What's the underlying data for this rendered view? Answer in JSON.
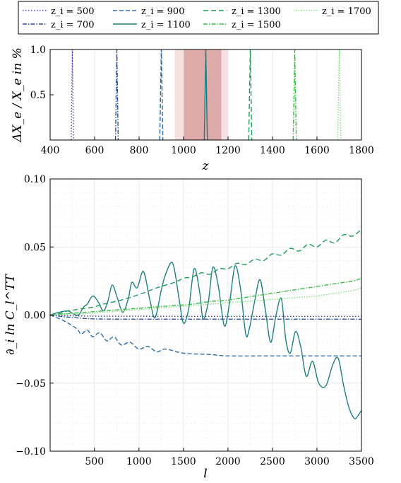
{
  "chart_data": [
    {
      "type": "line",
      "panel": "top",
      "xlabel": "z",
      "ylabel": "ΔX_e / X_e in %",
      "xlim": [
        400,
        1800
      ],
      "ylim": [
        0,
        1.0
      ],
      "xticks": [
        "400",
        "600",
        "800",
        "1000",
        "1200",
        "1400",
        "1600",
        "1800"
      ],
      "yticks": [
        "0.5",
        "1.0"
      ],
      "shaded_bands": [
        {
          "from": 960,
          "to": 1200,
          "color": "#f2dada",
          "opacity": 0.8
        },
        {
          "from": 1000,
          "to": 1170,
          "color": "#d9a0a0",
          "opacity": 0.85
        }
      ],
      "series": [
        {
          "name": "z_i = 500",
          "center": 500,
          "width": 10,
          "color": "#3b3bb0",
          "dash": "1.5,2.5"
        },
        {
          "name": "z_i = 700",
          "center": 700,
          "width": 12,
          "color": "#2f4fa0",
          "dash": "6,2,1.5,2"
        },
        {
          "name": "z_i = 900",
          "center": 900,
          "width": 14,
          "color": "#2f6aa8",
          "dash": "6,3"
        },
        {
          "name": "z_i = 1100",
          "center": 1100,
          "width": 14,
          "color": "#1f7f7f",
          "dash": ""
        },
        {
          "name": "z_i = 1300",
          "center": 1300,
          "width": 14,
          "color": "#1f9a5a",
          "dash": "7,4"
        },
        {
          "name": "z_i = 1500",
          "center": 1500,
          "width": 14,
          "color": "#3fba45",
          "dash": "6,2,1.5,2"
        },
        {
          "name": "z_i = 1700",
          "center": 1700,
          "width": 14,
          "color": "#7ee07a",
          "dash": "1.5,2"
        }
      ]
    },
    {
      "type": "line",
      "panel": "bottom",
      "xlabel": "l",
      "ylabel": "∂_i ln C_l^TT",
      "xlim": [
        2,
        3500
      ],
      "ylim": [
        -0.1,
        0.1
      ],
      "xticks": [
        "500",
        "1000",
        "1500",
        "2000",
        "2500",
        "3000",
        "3500"
      ],
      "yticks": [
        "−0.10",
        "−0.05",
        "0.00",
        "0.05",
        "0.10"
      ],
      "series": [
        {
          "name": "z_i = 500",
          "color": "#3b3bb0",
          "dash": "1.5,2.5",
          "x": [
            2,
            200,
            500,
            1000,
            1500,
            2000,
            2500,
            3000,
            3500
          ],
          "y": [
            0.0,
            -0.0005,
            -0.0008,
            -0.0009,
            -0.001,
            -0.001,
            -0.001,
            -0.001,
            -0.001
          ]
        },
        {
          "name": "z_i = 700",
          "color": "#2f4fa0",
          "dash": "6,2,1.5,2",
          "x": [
            2,
            200,
            500,
            1000,
            1500,
            2000,
            2500,
            3000,
            3500
          ],
          "y": [
            0.0,
            -0.0015,
            -0.0028,
            -0.003,
            -0.003,
            -0.003,
            -0.003,
            -0.003,
            -0.003
          ]
        },
        {
          "name": "z_i = 900",
          "color": "#2f6aa8",
          "dash": "6,3",
          "x": [
            2,
            150,
            300,
            350,
            420,
            480,
            560,
            640,
            720,
            800,
            900,
            1000,
            1100,
            1200,
            1300,
            1500,
            1800,
            2000,
            2500,
            3000,
            3500
          ],
          "y": [
            0.0,
            -0.004,
            -0.01,
            -0.014,
            -0.011,
            -0.016,
            -0.013,
            -0.019,
            -0.016,
            -0.022,
            -0.02,
            -0.025,
            -0.023,
            -0.027,
            -0.025,
            -0.028,
            -0.029,
            -0.03,
            -0.03,
            -0.03,
            -0.03
          ]
        },
        {
          "name": "z_i = 1100",
          "color": "#1f7f7f",
          "dash": "",
          "x": [
            2,
            100,
            200,
            260,
            320,
            380,
            420,
            480,
            540,
            600,
            650,
            700,
            760,
            820,
            880,
            920,
            980,
            1050,
            1120,
            1180,
            1250,
            1300,
            1380,
            1450,
            1500,
            1560,
            1620,
            1680,
            1720,
            1780,
            1830,
            1890,
            1960,
            2020,
            2080,
            2140,
            2200,
            2240,
            2300,
            2360,
            2420,
            2480,
            2540,
            2600,
            2650,
            2700,
            2760,
            2820,
            2880,
            2950,
            3020,
            3100,
            3180,
            3240,
            3300,
            3360,
            3420,
            3460,
            3500
          ],
          "y": [
            0.0,
            0.002,
            0.003,
            0.001,
            0.0,
            0.006,
            0.008,
            0.014,
            0.01,
            0.003,
            0.01,
            0.022,
            0.012,
            0.002,
            0.012,
            0.024,
            0.02,
            0.032,
            0.012,
            -0.002,
            0.018,
            0.03,
            0.038,
            0.012,
            -0.006,
            0.005,
            0.034,
            0.018,
            -0.003,
            0.01,
            0.035,
            0.022,
            -0.008,
            0.01,
            0.036,
            0.02,
            -0.014,
            -0.01,
            0.01,
            0.026,
            0.004,
            -0.02,
            0.0,
            0.012,
            -0.018,
            -0.028,
            -0.012,
            -0.024,
            -0.045,
            -0.034,
            -0.05,
            -0.052,
            -0.036,
            -0.032,
            -0.052,
            -0.068,
            -0.076,
            -0.074,
            -0.07
          ]
        },
        {
          "name": "z_i = 1300",
          "color": "#1f9a5a",
          "dash": "7,4",
          "x": [
            2,
            100,
            200,
            300,
            400,
            500,
            600,
            800,
            1000,
            1200,
            1400,
            1500,
            1600,
            1700,
            1800,
            1900,
            2000,
            2100,
            2200,
            2300,
            2400,
            2500,
            2600,
            2700,
            2800,
            2900,
            3000,
            3100,
            3200,
            3300,
            3400,
            3500
          ],
          "y": [
            0.0,
            0.001,
            0.003,
            0.004,
            0.005,
            0.006,
            0.008,
            0.011,
            0.015,
            0.02,
            0.024,
            0.027,
            0.028,
            0.031,
            0.03,
            0.034,
            0.034,
            0.038,
            0.037,
            0.041,
            0.04,
            0.045,
            0.044,
            0.049,
            0.047,
            0.052,
            0.05,
            0.055,
            0.053,
            0.059,
            0.058,
            0.063
          ]
        },
        {
          "name": "z_i = 1500",
          "color": "#3fba45",
          "dash": "6,2,1.5,2",
          "x": [
            2,
            200,
            400,
            600,
            800,
            1000,
            1200,
            1400,
            1600,
            1800,
            2000,
            2200,
            2400,
            2600,
            2800,
            3000,
            3200,
            3400,
            3500
          ],
          "y": [
            0.0,
            0.001,
            0.002,
            0.003,
            0.004,
            0.005,
            0.006,
            0.007,
            0.008,
            0.01,
            0.011,
            0.013,
            0.015,
            0.017,
            0.019,
            0.021,
            0.023,
            0.025,
            0.027
          ]
        },
        {
          "name": "z_i = 1700",
          "color": "#7ee07a",
          "dash": "1.5,2",
          "x": [
            2,
            200,
            400,
            600,
            800,
            1000,
            1200,
            1400,
            1600,
            1800,
            2000,
            2200,
            2400,
            2600,
            2800,
            3000,
            3200,
            3400,
            3500
          ],
          "y": [
            0.0,
            0.001,
            0.001,
            0.002,
            0.003,
            0.004,
            0.005,
            0.006,
            0.007,
            0.008,
            0.009,
            0.01,
            0.011,
            0.012,
            0.013,
            0.014,
            0.016,
            0.018,
            0.02
          ]
        }
      ]
    }
  ]
}
